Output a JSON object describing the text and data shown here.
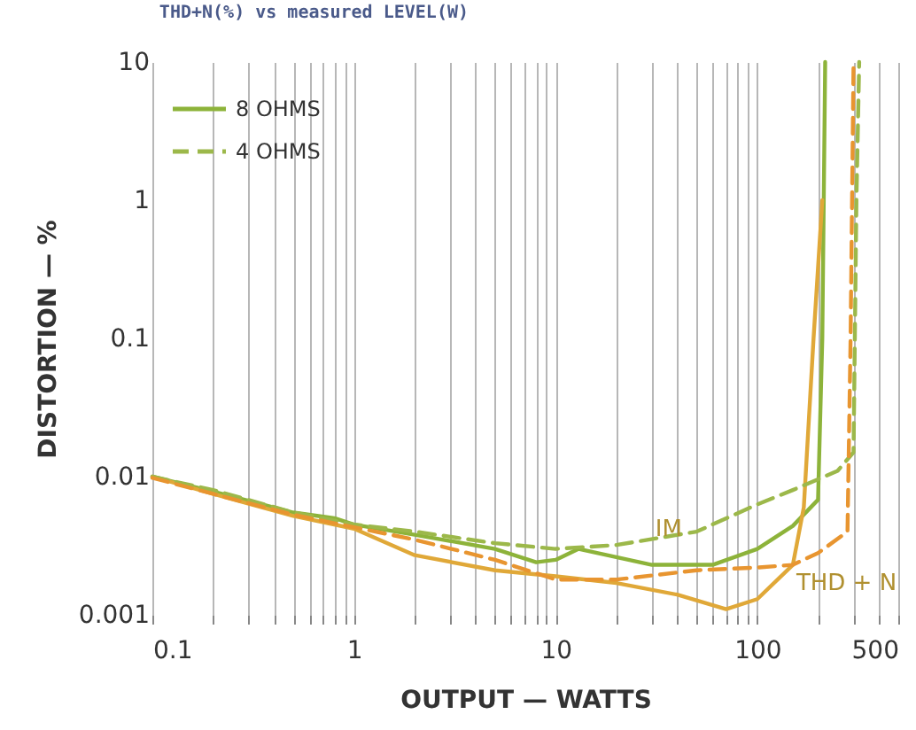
{
  "chart_data": {
    "type": "line",
    "title": "THD+N(%) vs measured LEVEL(W)",
    "xlabel": "OUTPUT — WATTS",
    "ylabel": "DISTORTION — %",
    "log": "xy",
    "grid": "x",
    "legend": "top left",
    "xlim": [
      0.1,
      500
    ],
    "ylim": [
      0.001,
      10
    ],
    "xticks": [
      0.1,
      {
        "value": 0.2,
        "label": null
      },
      {
        "value": 0.3,
        "label": null
      },
      {
        "value": 0.4,
        "label": null
      },
      {
        "value": 0.5,
        "label": null
      },
      {
        "value": 0.6,
        "label": null
      },
      {
        "value": 0.7,
        "label": null
      },
      {
        "value": 0.8,
        "label": null
      },
      {
        "value": 0.9,
        "label": null
      },
      1,
      {
        "value": 2,
        "label": null
      },
      {
        "value": 3,
        "label": null
      },
      {
        "value": 4,
        "label": null
      },
      {
        "value": 5,
        "label": null
      },
      {
        "value": 6,
        "label": null
      },
      {
        "value": 7,
        "label": null
      },
      {
        "value": 8,
        "label": null
      },
      {
        "value": 9,
        "label": null
      },
      10,
      {
        "value": 20,
        "label": null
      },
      {
        "value": 30,
        "label": null
      },
      {
        "value": 40,
        "label": null
      },
      {
        "value": 50,
        "label": null
      },
      {
        "value": 60,
        "label": null
      },
      {
        "value": 70,
        "label": null
      },
      {
        "value": 80,
        "label": null
      },
      {
        "value": 90,
        "label": null
      },
      100,
      {
        "value": 200,
        "label": null
      },
      {
        "value": 300,
        "label": null
      },
      {
        "value": 400,
        "label": null
      },
      500
    ],
    "yticks": [
      0.001,
      0.01,
      0.1,
      1,
      10
    ],
    "series": [
      {
        "name": "8 OHMS",
        "color": "#8db33a",
        "line_style": "solid",
        "x": [
          0.1,
          0.2,
          0.5,
          0.8,
          1,
          2,
          5,
          8,
          10,
          13,
          30,
          60,
          100,
          150,
          200,
          210,
          217
        ],
        "values": [
          0.01,
          0.0078,
          0.0055,
          0.005,
          0.0045,
          0.0038,
          0.003,
          0.0024,
          0.0025,
          0.003,
          0.0023,
          0.0023,
          0.003,
          0.0044,
          0.0068,
          0.1,
          10
        ]
      },
      {
        "name": "4 OHMS",
        "color": "#9cb84a",
        "line_style": "dashed",
        "x": [
          0.1,
          0.2,
          0.5,
          1,
          2,
          5,
          10,
          20,
          50,
          100,
          150,
          250,
          300,
          310,
          320
        ],
        "values": [
          0.01,
          0.008,
          0.0055,
          0.0045,
          0.004,
          0.0033,
          0.003,
          0.0032,
          0.004,
          0.0063,
          0.008,
          0.011,
          0.015,
          1,
          10
        ]
      },
      {
        "color": "#e0a838",
        "line_style": "solid",
        "x": [
          0.1,
          0.2,
          0.5,
          1,
          2,
          5,
          10,
          20,
          40,
          70,
          100,
          150,
          170,
          190,
          210
        ],
        "values": [
          0.01,
          0.0075,
          0.0052,
          0.0042,
          0.0027,
          0.0021,
          0.0019,
          0.0017,
          0.0014,
          0.0011,
          0.0013,
          0.0023,
          0.006,
          0.1,
          1
        ]
      },
      {
        "color": "#e89530",
        "line_style": "dashed",
        "x": [
          0.1,
          0.2,
          0.5,
          1,
          2,
          5,
          10,
          20,
          50,
          100,
          150,
          200,
          280,
          290,
          300
        ],
        "values": [
          0.0098,
          0.0075,
          0.0053,
          0.0043,
          0.0035,
          0.0025,
          0.0018,
          0.0018,
          0.0021,
          0.0022,
          0.0023,
          0.0028,
          0.004,
          0.1,
          10
        ]
      }
    ],
    "annotations": [
      {
        "text": "IM",
        "x": 20,
        "y": 0.0032
      },
      {
        "text": "THD + N",
        "x": 100,
        "y": 0.0013
      }
    ]
  }
}
